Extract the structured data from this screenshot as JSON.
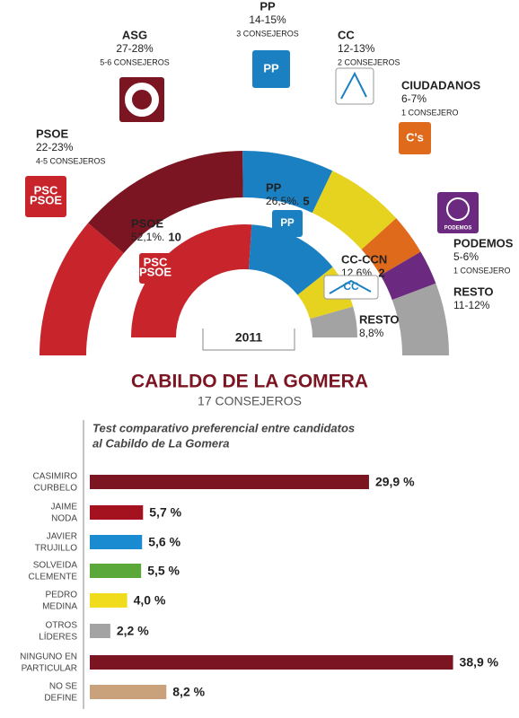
{
  "chart_data": [
    {
      "type": "semicircle",
      "title": "CABILDO DE LA GOMERA",
      "subtitle": "17 CONSEJEROS",
      "categories": [
        "PSOE",
        "ASG",
        "PP",
        "CC",
        "CIUDADANOS",
        "PODEMOS",
        "RESTO"
      ],
      "values": [
        22.5,
        27.5,
        14.5,
        12.5,
        6.5,
        5.5,
        11.5
      ],
      "value_labels": [
        "22-23%",
        "27-28%",
        "14-15%",
        "12-13%",
        "6-7%",
        "5-6%",
        "11-12%"
      ],
      "seat_labels": [
        "4-5 CONSEJEROS",
        "5-6 CONSEJEROS",
        "3 CONSEJEROS",
        "2 CONSEJEROS",
        "1 CONSEJERO",
        "1 CONSEJERO",
        null
      ],
      "logos": [
        "PSC\nPSOE",
        null,
        "PP",
        null,
        "C's",
        "PODEMOS",
        null
      ],
      "colors": [
        "#c8242c",
        "#7c1522",
        "#1b80c2",
        "#e6d320",
        "#df6a1c",
        "#6b2a80",
        "#a3a3a3"
      ]
    },
    {
      "type": "semicircle",
      "label": "2011",
      "categories": [
        "PSOE",
        "PP",
        "CC-CCN",
        "RESTO"
      ],
      "values": [
        52.1,
        26.5,
        12.6,
        8.8
      ],
      "value_labels": [
        "52,1%.",
        "26,5%.",
        "12,6%.",
        "8,8%"
      ],
      "seats": [
        10,
        5,
        2,
        null
      ],
      "logos": [
        "PSC\nPSOE",
        "PP",
        "CC",
        null
      ],
      "colors": [
        "#c8242c",
        "#1b80c2",
        "#e6d320",
        "#a3a3a3"
      ]
    },
    {
      "type": "bar",
      "title": "Test comparativo preferencial entre candidatos\nal Cabildo de La Gomera",
      "categories": [
        "CASIMIRO\nCURBELO",
        "JAIME\nNODA",
        "JAVIER\nTRUJILLO",
        "SOLVEIDA\nCLEMENTE",
        "PEDRO\nMEDINA",
        "OTROS\nLÍDERES",
        "NINGUNO EN\nPARTICULAR",
        "NO SE\nDEFINE"
      ],
      "values": [
        29.9,
        5.7,
        5.6,
        5.5,
        4.0,
        2.2,
        38.9,
        8.2
      ],
      "value_labels": [
        "29,9 %",
        "5,7 %",
        "5,6 %",
        "5,5 %",
        "4,0 %",
        "2,2 %",
        "38,9 %",
        "8,2 %"
      ],
      "colors": [
        "#7c1522",
        "#a4121f",
        "#1a8bd1",
        "#5aa83a",
        "#f0dc1c",
        "#a3a3a3",
        "#7c1522",
        "#c9a27c"
      ]
    }
  ]
}
